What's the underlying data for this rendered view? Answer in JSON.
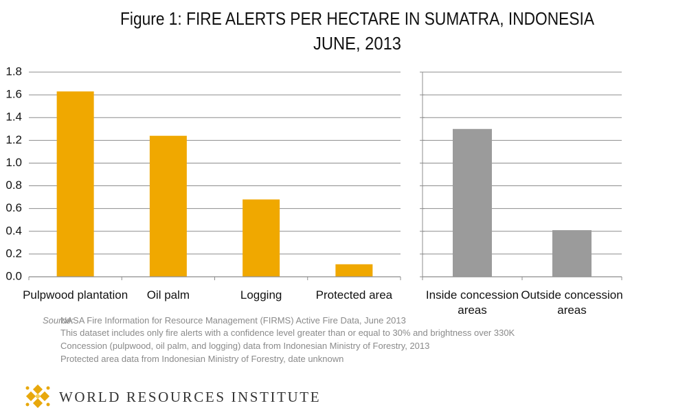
{
  "header": {
    "title": "Figure 1: FIRE ALERTS PER HECTARE IN SUMATRA, INDONESIA",
    "subtitle": "JUNE, 2013"
  },
  "chart_data": [
    {
      "type": "bar",
      "categories": [
        "Pulpwood plantation",
        "Oil palm",
        "Logging",
        "Protected area"
      ],
      "values": [
        1.63,
        1.24,
        0.68,
        0.11
      ],
      "color": "#f0a800",
      "ylim": [
        0,
        1.8
      ],
      "yticks": [
        {
          "value": 0,
          "label": "0.0"
        },
        0.2,
        0.4,
        0.6,
        0.8,
        {
          "value": 1,
          "label": "1.0"
        },
        1.2,
        1.4,
        1.6,
        1.8
      ],
      "grid": true,
      "tick_labels": true
    },
    {
      "type": "bar",
      "categories": [
        "Inside concession areas",
        "Outside concession areas"
      ],
      "values": [
        1.3,
        0.41
      ],
      "color": "#9b9b9b",
      "ylim": [
        0,
        1.8
      ],
      "yticks": [
        0,
        0.2,
        0.4,
        0.6,
        0.8,
        1,
        1.2,
        1.4,
        1.6,
        1.8
      ],
      "grid": true,
      "tick_labels": false
    }
  ],
  "source": {
    "label": "Source:",
    "lines": [
      "NASA Fire Information for Resource Management (FIRMS) Active Fire Data, June 2013",
      "This dataset includes only fire alerts with a confidence level greater than or equal to 30% and brightness over 330K",
      "Concession  (pulpwood, oil palm, and logging) data from Indonesian Ministry of Forestry, 2013",
      "Protected area data from Indonesian Ministry of Forestry, date unknown"
    ]
  },
  "footer": {
    "organization": "WORLD RESOURCES INSTITUTE"
  }
}
